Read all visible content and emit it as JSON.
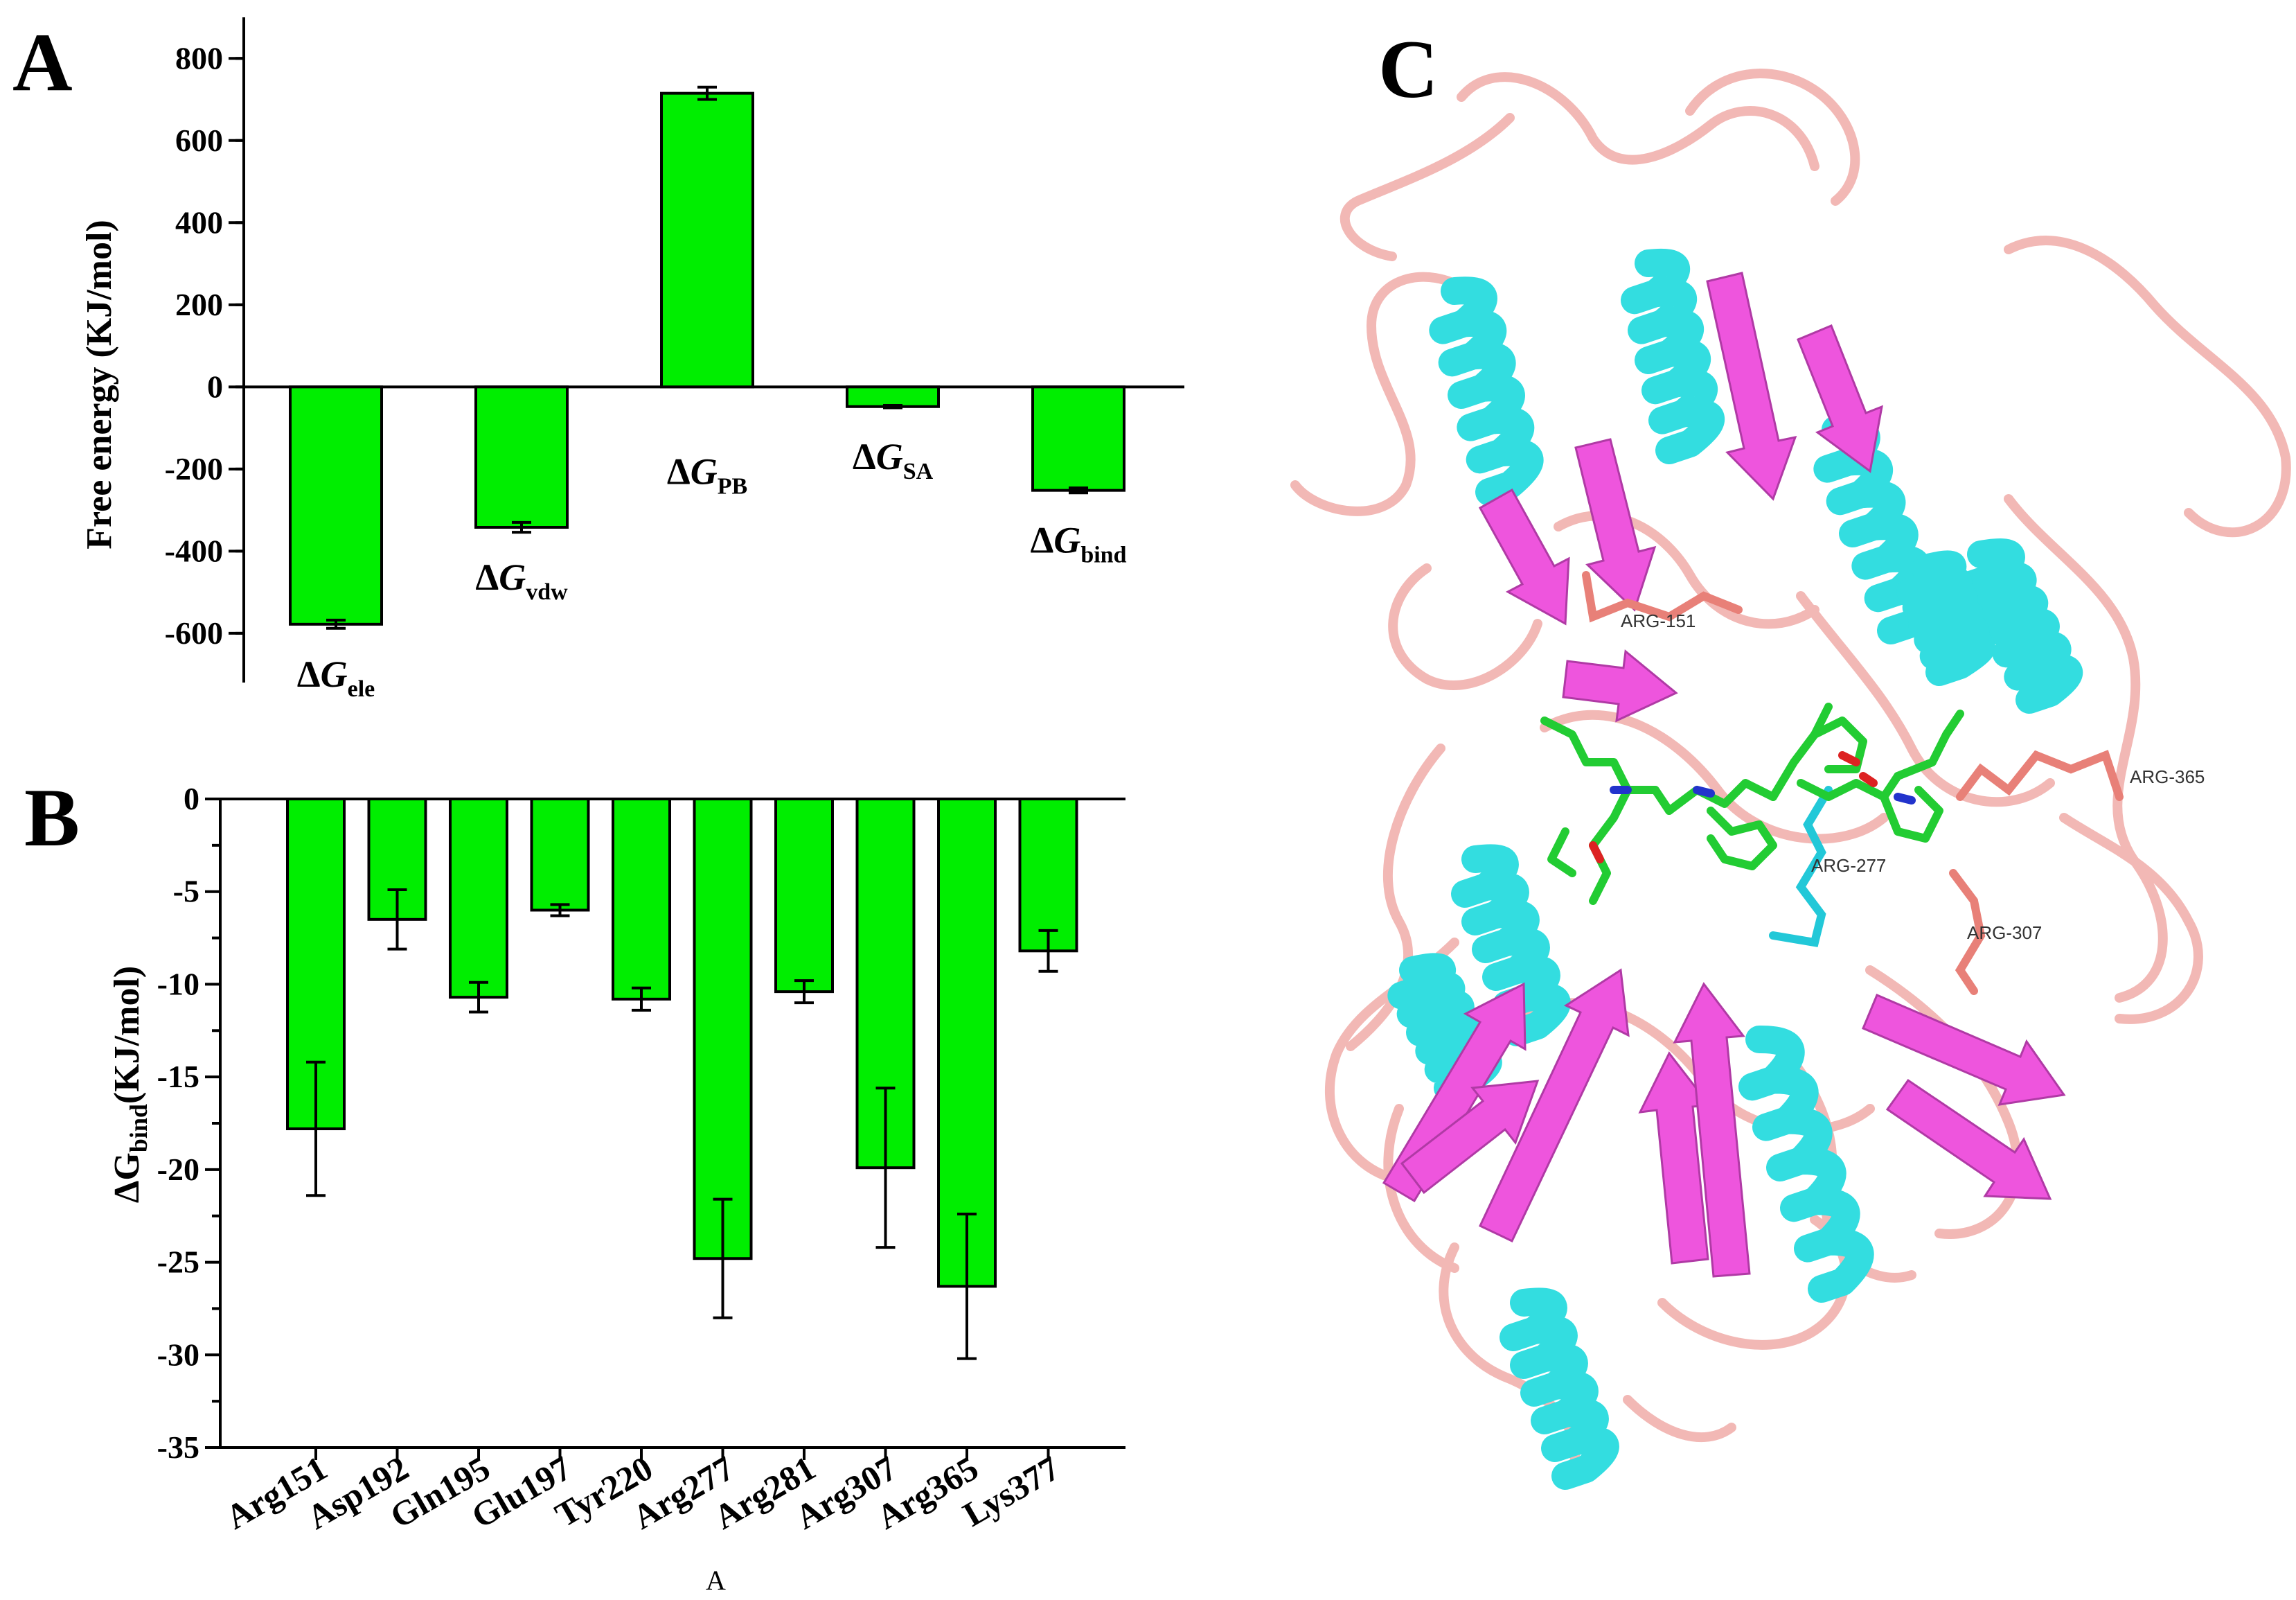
{
  "panels": {
    "a": "A",
    "b": "B",
    "c": "C"
  },
  "colors": {
    "bar": "#00ee00",
    "helix": "#33dde0",
    "sheet": "#ee55dd",
    "loop": "#f2b8b5",
    "stick_red": "#e88078",
    "ligand": "#22cc33"
  },
  "chart_data": [
    {
      "type": "bar",
      "ylabel": "Free energy (KJ/mol)",
      "ylim": [
        -720,
        900
      ],
      "yticks": [
        800,
        600,
        400,
        200,
        0,
        -200,
        -400,
        -600
      ],
      "categories": [
        {
          "symbol": "ΔG",
          "sub": "ele"
        },
        {
          "symbol": "ΔG",
          "sub": "vdw"
        },
        {
          "symbol": "ΔG",
          "sub": "PB"
        },
        {
          "symbol": "ΔG",
          "sub": "SA"
        },
        {
          "symbol": "ΔG",
          "sub": "bind"
        }
      ],
      "values": [
        -578,
        -342,
        715,
        -48,
        -252
      ],
      "errors": [
        10,
        12,
        15,
        3,
        6
      ]
    },
    {
      "type": "bar",
      "ylabel": {
        "main": "ΔG",
        "sub": "bind",
        "rest": "(KJ/mol)"
      },
      "ylim": [
        -35,
        0
      ],
      "yticks": [
        0,
        -5,
        -10,
        -15,
        -20,
        -25,
        -30,
        -35
      ],
      "categories": [
        "Arg151",
        "Asp192",
        "Gln195",
        "Glu197",
        "Tyr220",
        "Arg277",
        "Arg281",
        "Arg307",
        "Arg365",
        "Lys377"
      ],
      "extra_label": "A",
      "values": [
        -17.8,
        -6.5,
        -10.7,
        -6.0,
        -10.8,
        -24.8,
        -10.4,
        -19.9,
        -26.3,
        -8.2
      ],
      "errors": [
        3.6,
        1.6,
        0.8,
        0.3,
        0.6,
        3.2,
        0.6,
        4.3,
        3.9,
        1.1
      ]
    }
  ],
  "structure": {
    "labels": [
      "ARG-151",
      "ARG-365",
      "ARG-277",
      "ARG-307"
    ]
  }
}
